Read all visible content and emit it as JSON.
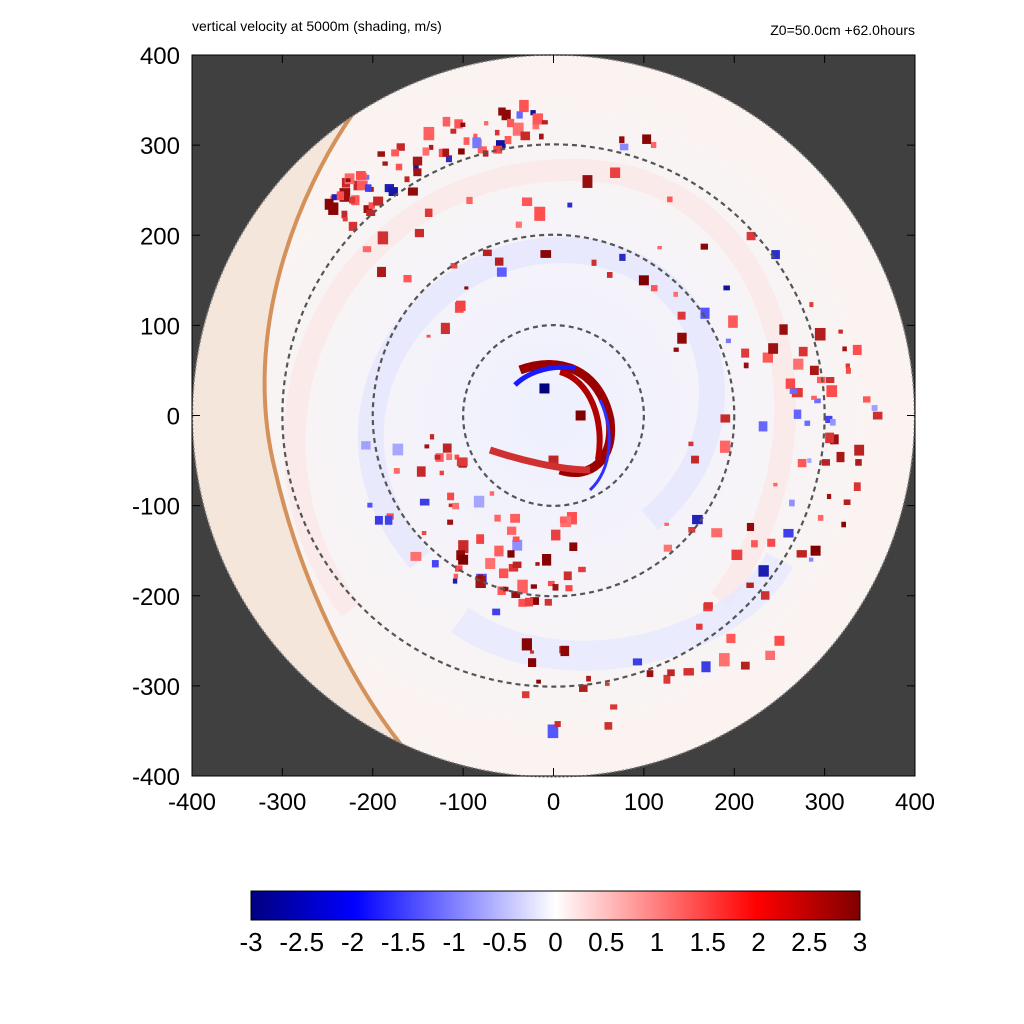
{
  "title": "vertical velocity at 5000m (shading, m/s)",
  "info": "Z0=50.0cm  +62.0hours",
  "chart_data": {
    "type": "heatmap",
    "title": "vertical velocity at 5000m (shading, m/s)",
    "annotation": "Z0=50.0cm  +62.0hours",
    "xlabel": "",
    "ylabel": "",
    "xlim": [
      -400,
      400
    ],
    "ylim": [
      -400,
      400
    ],
    "x_ticks": [
      -400,
      -300,
      -200,
      -100,
      0,
      100,
      200,
      300,
      400
    ],
    "y_ticks": [
      -400,
      -300,
      -200,
      -100,
      0,
      100,
      200,
      300,
      400
    ],
    "x_tick_labels": [
      "-400",
      "-300",
      "-200",
      "-100",
      "0",
      "100",
      "200",
      "300",
      "400"
    ],
    "y_tick_labels": [
      "-400",
      "-300",
      "-200",
      "-100",
      "0",
      "100",
      "200",
      "300",
      "400"
    ],
    "domain_radius": 400,
    "range_rings": [
      100,
      200,
      300
    ],
    "colorbar": {
      "min": -3,
      "max": 3,
      "ticks": [
        -3,
        -2.5,
        -2,
        -1.5,
        -1,
        -0.5,
        0,
        0.5,
        1,
        1.5,
        2,
        2.5,
        3
      ],
      "tick_labels": [
        "-3",
        "-2.5",
        "-2",
        "-1.5",
        "-1",
        "-0.5",
        "0",
        "0.5",
        "1",
        "1.5",
        "2",
        "2.5",
        "3"
      ],
      "colors": [
        "#00007f",
        "#0000ff",
        "#ffffff",
        "#ff0000",
        "#7f0000"
      ]
    },
    "colors": {
      "outside": "#404040",
      "arc": "#d4915a",
      "shaded_sector": "#f4e4d9",
      "rings": "#555555"
    },
    "features": [
      {
        "x": 30,
        "y": 0,
        "value": 3
      },
      {
        "x": -10,
        "y": 30,
        "value": -3
      },
      {
        "x": 0,
        "y": -50,
        "value": 2.5
      },
      {
        "x": 100,
        "y": 150,
        "value": 3
      },
      {
        "x": -100,
        "y": -160,
        "value": 3
      },
      {
        "x": 290,
        "y": -150,
        "value": 3
      },
      {
        "x": 250,
        "y": -250,
        "value": 2
      }
    ]
  }
}
